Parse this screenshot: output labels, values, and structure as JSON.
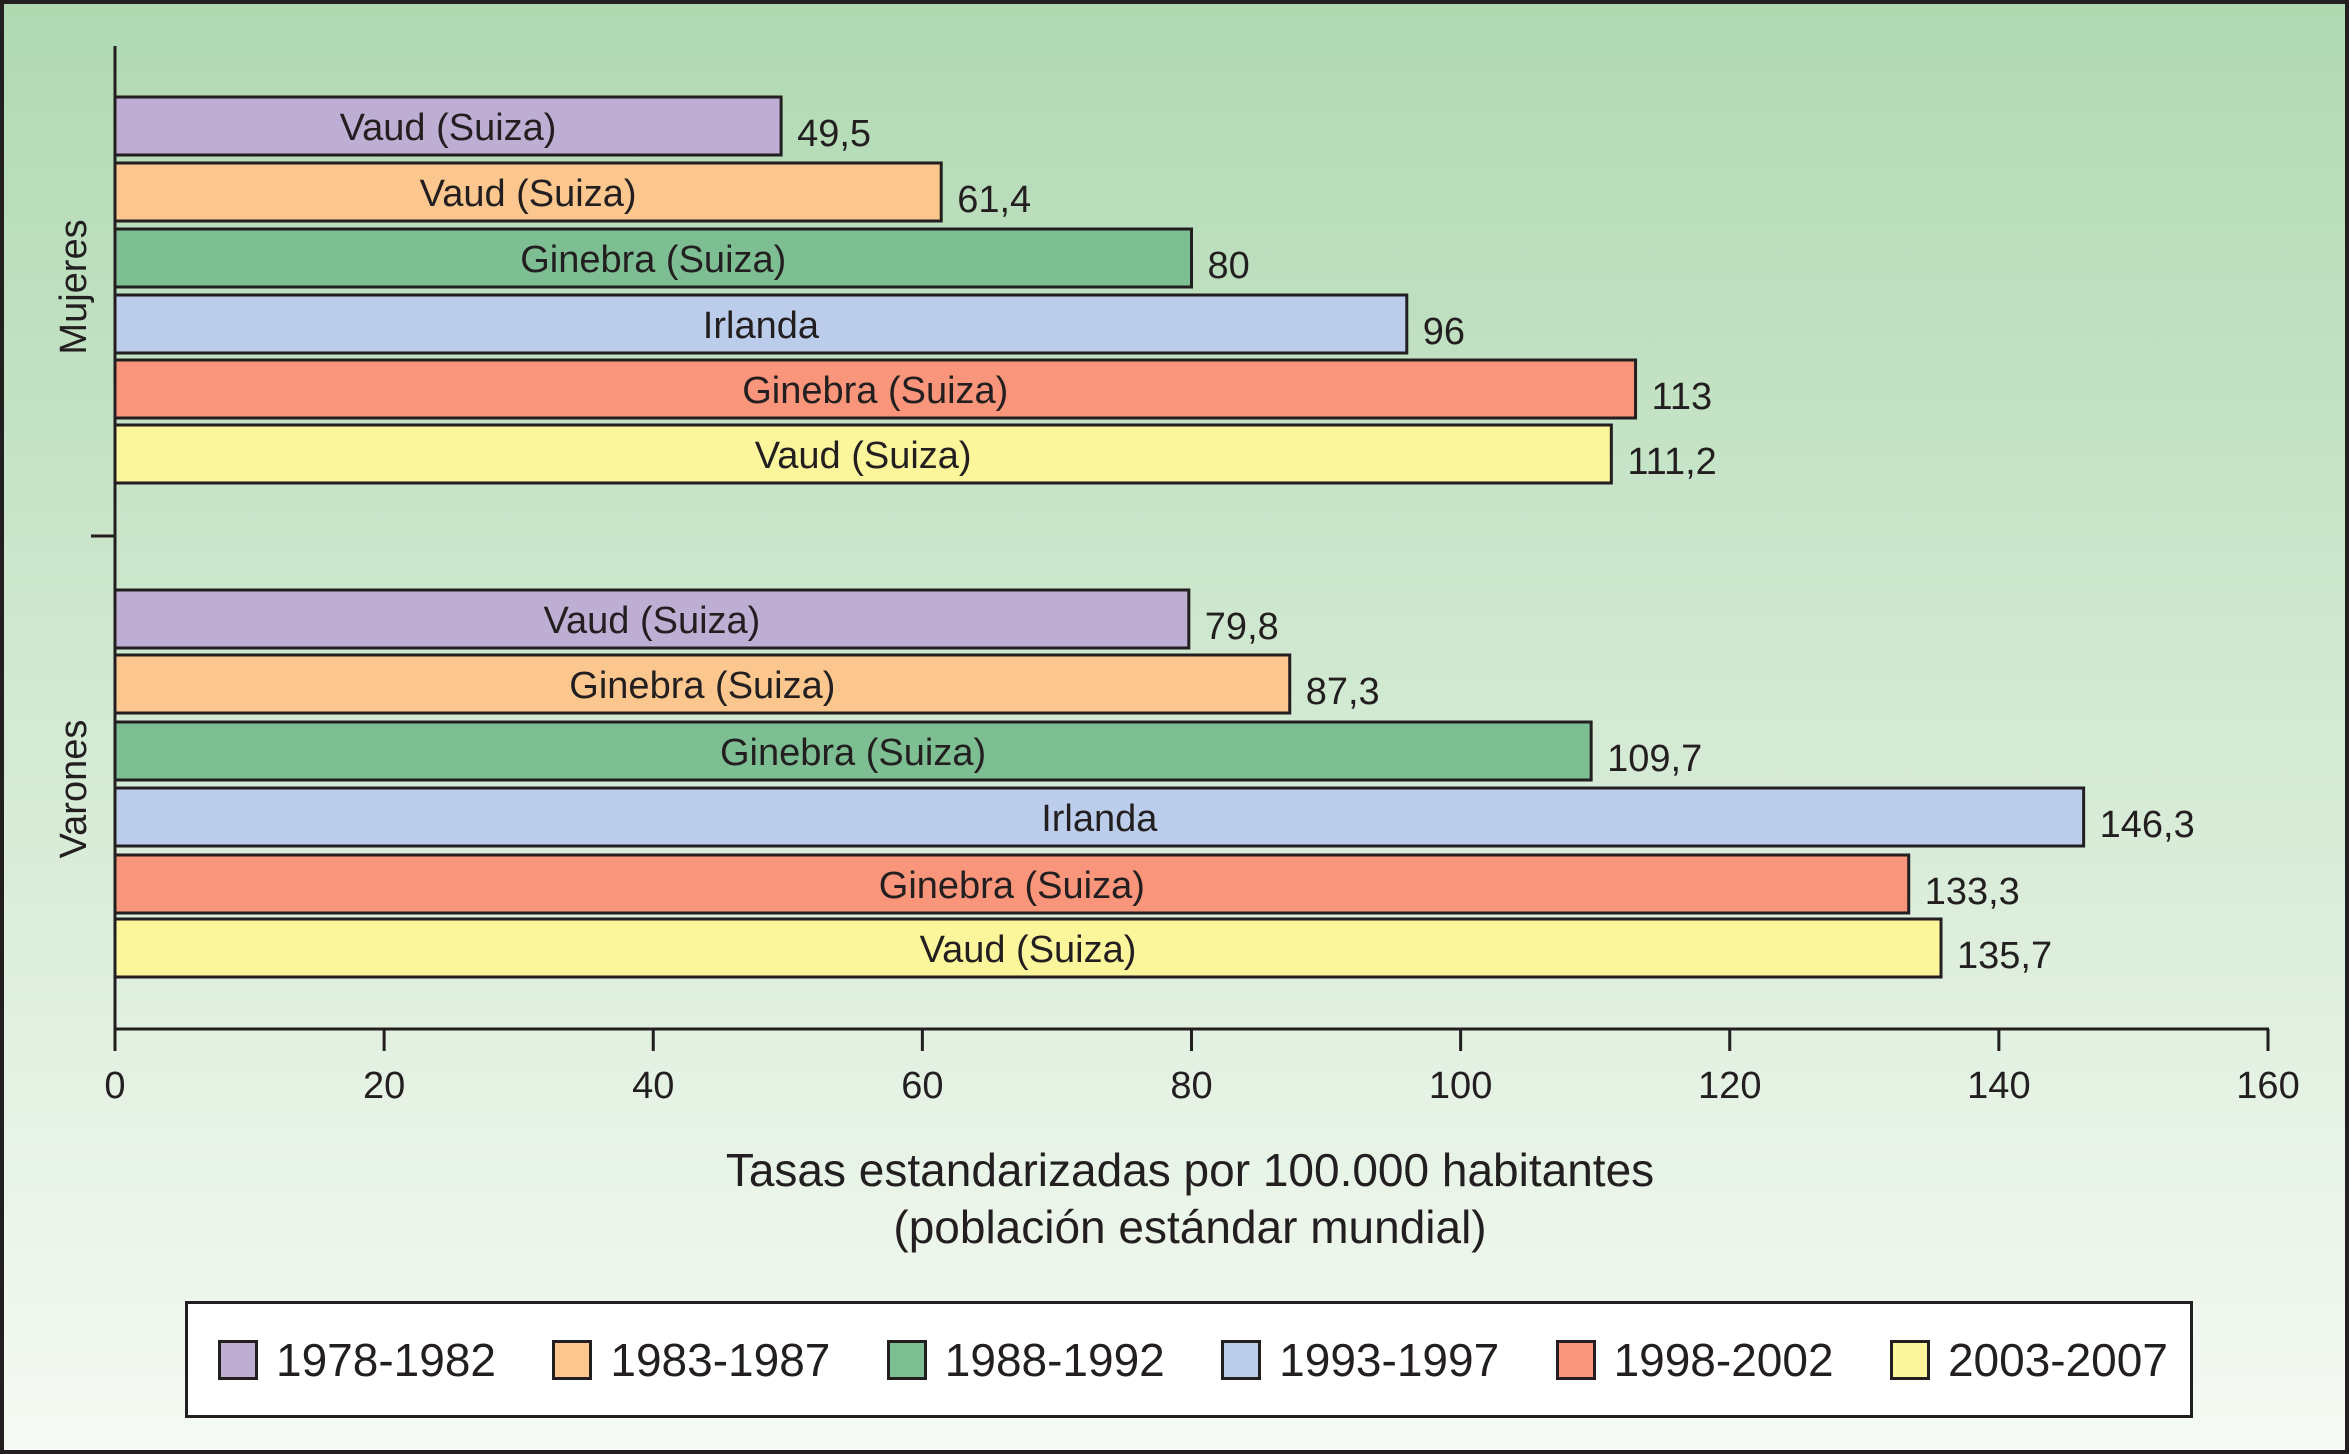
{
  "chart_data": {
    "type": "bar",
    "orientation": "horizontal",
    "xlabel": [
      "Tasas estandarizadas por 100.000 habitantes",
      "(población estándar mundial)"
    ],
    "xlim": [
      0,
      160
    ],
    "xticks": [
      "0",
      "20",
      "40",
      "60",
      "80",
      "100",
      "120",
      "140",
      "160"
    ],
    "groups": [
      {
        "name": "Mujeres",
        "bars": [
          {
            "period": "1978-1982",
            "label": "Vaud (Suiza)",
            "value": 49.5,
            "value_label": "49,5"
          },
          {
            "period": "1983-1987",
            "label": "Vaud (Suiza)",
            "value": 61.4,
            "value_label": "61,4"
          },
          {
            "period": "1988-1992",
            "label": "Ginebra (Suiza)",
            "value": 80,
            "value_label": "80"
          },
          {
            "period": "1993-1997",
            "label": "Irlanda",
            "value": 96,
            "value_label": "96"
          },
          {
            "period": "1998-2002",
            "label": "Ginebra (Suiza)",
            "value": 113,
            "value_label": "113"
          },
          {
            "period": "2003-2007",
            "label": "Vaud (Suiza)",
            "value": 111.2,
            "value_label": "111,2"
          }
        ]
      },
      {
        "name": "Varones",
        "bars": [
          {
            "period": "1978-1982",
            "label": "Vaud (Suiza)",
            "value": 79.8,
            "value_label": "79,8"
          },
          {
            "period": "1983-1987",
            "label": "Ginebra (Suiza)",
            "value": 87.3,
            "value_label": "87,3"
          },
          {
            "period": "1988-1992",
            "label": "Ginebra (Suiza)",
            "value": 109.7,
            "value_label": "109,7"
          },
          {
            "period": "1993-1997",
            "label": "Irlanda",
            "value": 146.3,
            "value_label": "146,3"
          },
          {
            "period": "1998-2002",
            "label": "Ginebra (Suiza)",
            "value": 133.3,
            "value_label": "133,3"
          },
          {
            "period": "2003-2007",
            "label": "Vaud (Suiza)",
            "value": 135.7,
            "value_label": "135,7"
          }
        ]
      }
    ],
    "legend": {
      "position": "bottom",
      "items": [
        {
          "label": "1978-1982",
          "color": "#bfaed4"
        },
        {
          "label": "1983-1987",
          "color": "#fcc78e"
        },
        {
          "label": "1988-1992",
          "color": "#7dbf92"
        },
        {
          "label": "1993-1997",
          "color": "#bccdeb"
        },
        {
          "label": "1998-2002",
          "color": "#f8957a"
        },
        {
          "label": "2003-2007",
          "color": "#fbf59b"
        }
      ]
    },
    "background": {
      "top": "#b0d9b2",
      "bottom": "#f6faf4"
    }
  }
}
